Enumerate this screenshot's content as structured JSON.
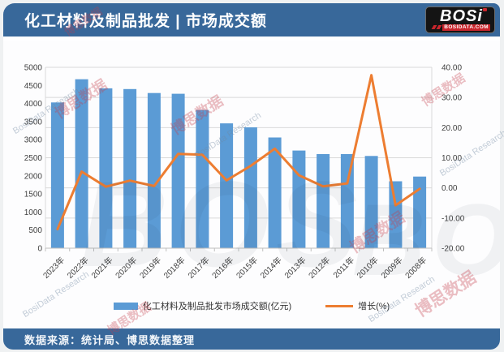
{
  "header": {
    "title": "化工材料及制品批发 | 市场成交额",
    "logo": {
      "brand": "BOSi",
      "domain": "BOSIDATA.COM"
    }
  },
  "footer": {
    "source": "数据来源：统计局、博思数据整理"
  },
  "watermarks": {
    "cn": "博思数据",
    "en": "BosiData Research",
    "logo": "BOS"
  },
  "colors": {
    "header_blue": "#38689A",
    "footer_blue": "#38689A",
    "logo_black": "#141414",
    "logo_red": "#C9252C",
    "bar_blue": "#5B9BD5",
    "line_orange": "#ED7D31"
  },
  "chart_data": {
    "type": "combo-bar-line",
    "title": "化工材料及制品批发市场成交额",
    "categories": [
      "2023年",
      "2022年",
      "2021年",
      "2020年",
      "2019年",
      "2018年",
      "2017年",
      "2016年",
      "2015年",
      "2014年",
      "2013年",
      "2012年",
      "2011年",
      "2010年",
      "2009年",
      "2008年"
    ],
    "series": [
      {
        "name": "化工材料及制品批发市场成交额(亿元)",
        "type": "bar",
        "axis": "left",
        "color": "#5B9BD5",
        "values": [
          4030,
          4670,
          4420,
          4400,
          4290,
          4270,
          3820,
          3450,
          3340,
          3060,
          2700,
          2600,
          2600,
          2550,
          1850,
          1980
        ]
      },
      {
        "name": "增长(%)",
        "type": "line",
        "axis": "right",
        "color": "#ED7D31",
        "values": [
          -13.7,
          5.4,
          0.4,
          2.4,
          0.6,
          11.3,
          11.0,
          2.5,
          7.3,
          13.0,
          4.2,
          0.5,
          1.5,
          37.4,
          -5.8,
          -0.3
        ]
      }
    ],
    "left_axis": {
      "min": 0,
      "max": 5000,
      "step": 500
    },
    "right_axis": {
      "min": -20,
      "max": 40,
      "step": 10,
      "decimals": 2
    },
    "grid": true,
    "grid_follows_axis": "right",
    "legend_position": "bottom",
    "grid_color": "#D9D9D9",
    "axis_line_color": "#BFBFBF",
    "axis_text_color": "#404040"
  }
}
